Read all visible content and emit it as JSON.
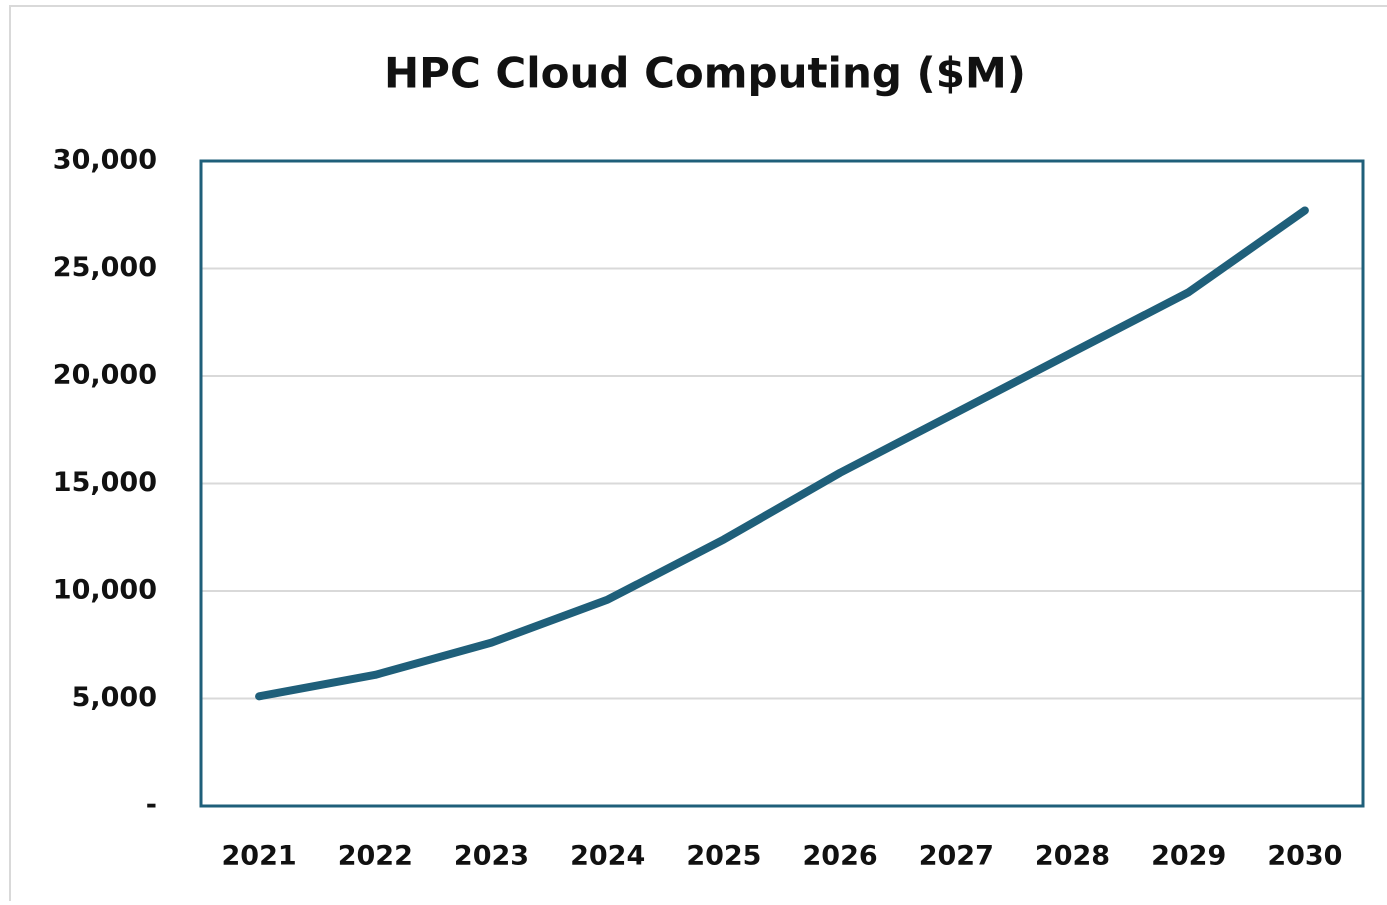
{
  "chart_data": {
    "type": "line",
    "title": "HPC Cloud Computing ($M)",
    "categories": [
      "2021",
      "2022",
      "2023",
      "2024",
      "2025",
      "2026",
      "2027",
      "2028",
      "2029",
      "2030"
    ],
    "series": [
      {
        "name": "HPC Cloud Computing",
        "color": "#1f5f7a",
        "values": [
          5100,
          6100,
          7600,
          9600,
          12400,
          15500,
          18300,
          21100,
          23900,
          27700
        ]
      }
    ],
    "ylim": [
      0,
      30000
    ],
    "yticks": [
      {
        "value": 0,
        "label": "-"
      },
      {
        "value": 5000,
        "label": "5,000"
      },
      {
        "value": 10000,
        "label": "10,000"
      },
      {
        "value": 15000,
        "label": "15,000"
      },
      {
        "value": 20000,
        "label": "20,000"
      },
      {
        "value": 25000,
        "label": "25,000"
      },
      {
        "value": 30000,
        "label": "30,000"
      }
    ],
    "grid": true
  }
}
